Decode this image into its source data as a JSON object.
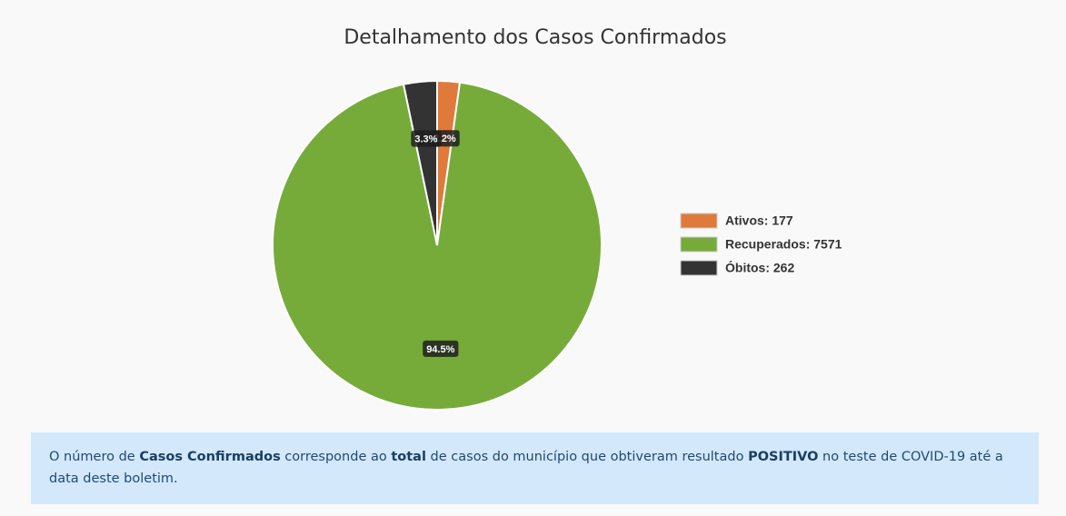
{
  "chart_data": {
    "type": "pie",
    "title": "Detalhamento dos Casos Confirmados",
    "categories": [
      "Ativos: 177",
      "Recuperados: 7571",
      "Óbitos: 262"
    ],
    "values": [
      177,
      7571,
      262
    ],
    "value_labels": [
      "2.2%",
      "94.5%",
      "3.3%"
    ],
    "colors": [
      "#e07a3a",
      "#76ab3a",
      "#333333"
    ]
  },
  "note": [
    "O número de ",
    "Casos Confirmados",
    " corresponde ao ",
    "total",
    " de casos do município que obtiveram resultado ",
    "POSITIVO",
    " no teste de COVID-19 até a data deste boletim."
  ]
}
